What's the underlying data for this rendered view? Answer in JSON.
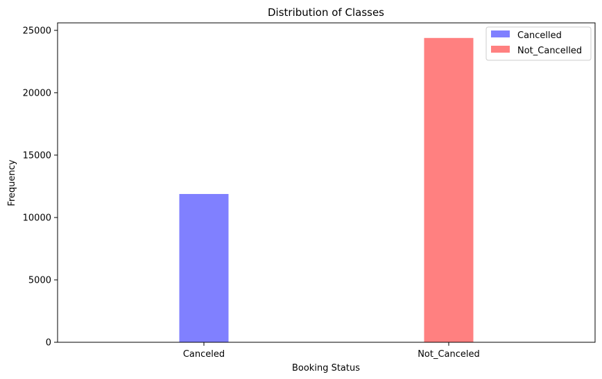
{
  "chart_data": {
    "type": "bar",
    "title": "Distribution of Classes",
    "xlabel": "Booking Status",
    "ylabel": "Frequency",
    "categories": [
      "Canceled",
      "Not_Canceled"
    ],
    "series": [
      {
        "name": "Cancelled",
        "category": "Canceled",
        "value": 11885,
        "color": "#8080ff"
      },
      {
        "name": "Not_Cancelled",
        "category": "Not_Canceled",
        "value": 24390,
        "color": "#ff8080"
      }
    ],
    "ylim": [
      0,
      25600
    ],
    "yticks": [
      0,
      5000,
      10000,
      15000,
      20000,
      25000
    ],
    "grid": false,
    "legend_position": "top-right"
  }
}
